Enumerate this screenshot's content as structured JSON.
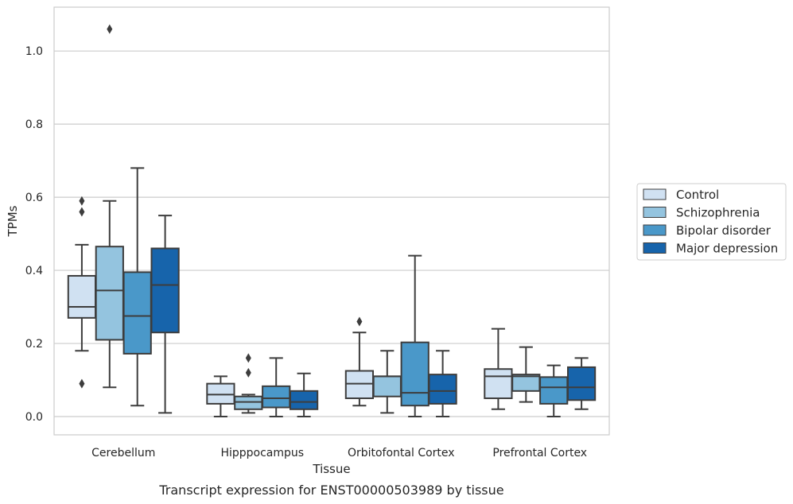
{
  "chart_data": {
    "type": "boxplot",
    "title": "",
    "caption": "Transcript expression for ENST00000503989 by tissue",
    "xlabel": "Tissue",
    "ylabel": "TPMs",
    "ylim": [
      -0.05,
      1.12
    ],
    "yticks": [
      "0.0",
      "0.2",
      "0.4",
      "0.6",
      "0.8",
      "1.0"
    ],
    "grid": "horizontal",
    "legend_position": "right",
    "categories": [
      "Cerebellum",
      "Hipppocampus",
      "Orbitofontal Cortex",
      "Prefrontal Cortex"
    ],
    "series": [
      {
        "name": "Control",
        "color": "#d0e1f2",
        "boxes": [
          {
            "whisker_low": 0.18,
            "q1": 0.27,
            "median": 0.3,
            "q3": 0.385,
            "whisker_high": 0.47,
            "outliers": [
              0.56,
              0.59,
              0.09
            ]
          },
          {
            "whisker_low": 0.0,
            "q1": 0.035,
            "median": 0.06,
            "q3": 0.09,
            "whisker_high": 0.11,
            "outliers": []
          },
          {
            "whisker_low": 0.03,
            "q1": 0.05,
            "median": 0.09,
            "q3": 0.125,
            "whisker_high": 0.23,
            "outliers": [
              0.26
            ]
          },
          {
            "whisker_low": 0.02,
            "q1": 0.05,
            "median": 0.11,
            "q3": 0.13,
            "whisker_high": 0.24,
            "outliers": []
          }
        ]
      },
      {
        "name": "Schizophrenia",
        "color": "#94c4df",
        "boxes": [
          {
            "whisker_low": 0.08,
            "q1": 0.21,
            "median": 0.345,
            "q3": 0.465,
            "whisker_high": 0.59,
            "outliers": [
              1.06
            ]
          },
          {
            "whisker_low": 0.01,
            "q1": 0.02,
            "median": 0.04,
            "q3": 0.055,
            "whisker_high": 0.06,
            "outliers": [
              0.12,
              0.16
            ]
          },
          {
            "whisker_low": 0.01,
            "q1": 0.055,
            "median": 0.11,
            "q3": 0.11,
            "whisker_high": 0.18,
            "outliers": []
          },
          {
            "whisker_low": 0.04,
            "q1": 0.07,
            "median": 0.11,
            "q3": 0.115,
            "whisker_high": 0.19,
            "outliers": []
          }
        ]
      },
      {
        "name": "Bipolar disorder",
        "color": "#4a98c9",
        "boxes": [
          {
            "whisker_low": 0.03,
            "q1": 0.172,
            "median": 0.275,
            "q3": 0.395,
            "whisker_high": 0.68,
            "outliers": []
          },
          {
            "whisker_low": 0.0,
            "q1": 0.025,
            "median": 0.05,
            "q3": 0.083,
            "whisker_high": 0.16,
            "outliers": []
          },
          {
            "whisker_low": 0.0,
            "q1": 0.03,
            "median": 0.065,
            "q3": 0.203,
            "whisker_high": 0.44,
            "outliers": []
          },
          {
            "whisker_low": 0.0,
            "q1": 0.035,
            "median": 0.08,
            "q3": 0.108,
            "whisker_high": 0.14,
            "outliers": []
          }
        ]
      },
      {
        "name": "Major depression",
        "color": "#1764ab",
        "boxes": [
          {
            "whisker_low": 0.01,
            "q1": 0.23,
            "median": 0.36,
            "q3": 0.46,
            "whisker_high": 0.55,
            "outliers": []
          },
          {
            "whisker_low": 0.0,
            "q1": 0.02,
            "median": 0.04,
            "q3": 0.07,
            "whisker_high": 0.118,
            "outliers": []
          },
          {
            "whisker_low": 0.0,
            "q1": 0.035,
            "median": 0.07,
            "q3": 0.115,
            "whisker_high": 0.18,
            "outliers": []
          },
          {
            "whisker_low": 0.02,
            "q1": 0.045,
            "median": 0.08,
            "q3": 0.135,
            "whisker_high": 0.16,
            "outliers": []
          }
        ]
      }
    ],
    "style": {
      "box_edge_color": "#3d3d3d",
      "grid_color": "#cccccc",
      "frame_color": "#cccccc",
      "legend_edge_color": "#cccccc"
    }
  }
}
